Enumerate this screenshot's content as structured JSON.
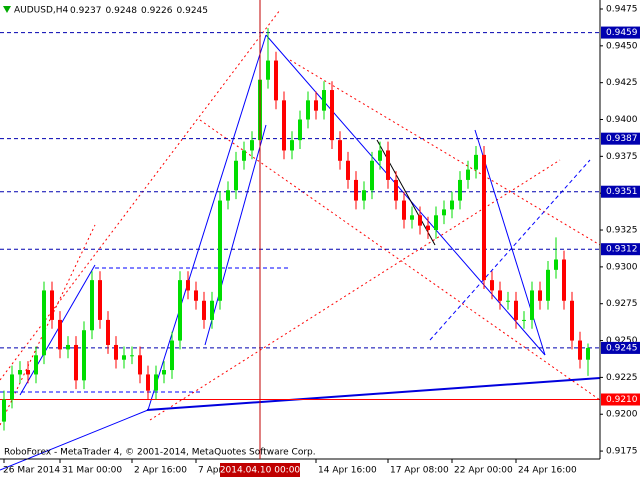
{
  "chart_data": {
    "type": "candlestick",
    "symbol": "AUDUSD,H4",
    "header_values": [
      0.9237,
      0.9248,
      0.9226,
      0.9245
    ],
    "footer": "RoboForex - MetaTrader 4, © 2001-2014, MetaQuotes Software Corp.",
    "up_color": "#00dd00",
    "down_color": "#ff0000",
    "cursor": "2014.04.10 00:00",
    "categories": [
      "26 Mar 2014",
      null,
      null,
      null,
      null,
      null,
      null,
      "31 Mar 00:00",
      null,
      null,
      null,
      null,
      null,
      null,
      null,
      null,
      "2 Apr 16:00",
      null,
      null,
      null,
      null,
      null,
      null,
      null,
      "7 Apr",
      null,
      null,
      null,
      null,
      null,
      null,
      null,
      "2014.04.10 00:00",
      null,
      null,
      null,
      null,
      null,
      null,
      "14 Apr 16:00",
      null,
      null,
      null,
      null,
      null,
      null,
      null,
      null,
      "17 Apr 08:00",
      null,
      null,
      null,
      null,
      null,
      null,
      null,
      "22 Apr 00:00",
      null,
      null,
      null,
      null,
      null,
      null,
      null,
      "24 Apr 16:00",
      null,
      null,
      null,
      null,
      null,
      null,
      null,
      null,
      null
    ],
    "open": [
      0.9195,
      0.921,
      0.9227,
      0.923,
      0.9227,
      0.924,
      0.9284,
      0.9264,
      0.9244,
      0.9247,
      0.9223,
      0.9257,
      0.9291,
      0.9264,
      0.9247,
      0.9237,
      0.924,
      0.924,
      0.9227,
      0.9216,
      0.9227,
      0.923,
      0.925,
      0.9291,
      0.9284,
      0.9277,
      0.9264,
      0.9277,
      0.9345,
      0.9352,
      0.9372,
      0.9379,
      0.9386,
      0.9427,
      0.944,
      0.9413,
      0.9379,
      0.9386,
      0.94,
      0.9413,
      0.9406,
      0.942,
      0.9386,
      0.9372,
      0.9359,
      0.9345,
      0.9352,
      0.9372,
      0.9379,
      0.9359,
      0.9345,
      0.9332,
      0.9335,
      0.9328,
      0.9325,
      0.9335,
      0.9339,
      0.9345,
      0.9359,
      0.9366,
      0.9376,
      0.9291,
      0.9284,
      0.9277,
      0.9277,
      0.9264,
      0.9264,
      0.9284,
      0.9277,
      0.9298,
      0.9305,
      0.9277,
      0.925,
      0.9237
    ],
    "high": [
      0.9216,
      0.9233,
      0.9236,
      0.9236,
      0.9246,
      0.929,
      0.929,
      0.927,
      0.9253,
      0.9253,
      0.9263,
      0.9297,
      0.9297,
      0.927,
      0.9253,
      0.9246,
      0.9246,
      0.9246,
      0.9233,
      0.9233,
      0.9236,
      0.9256,
      0.9297,
      0.9297,
      0.929,
      0.9283,
      0.9283,
      0.9351,
      0.9358,
      0.9378,
      0.9385,
      0.9392,
      0.9433,
      0.9462,
      0.9446,
      0.9419,
      0.9392,
      0.9406,
      0.9419,
      0.9419,
      0.9426,
      0.9426,
      0.9392,
      0.9378,
      0.9365,
      0.9358,
      0.9378,
      0.9385,
      0.9385,
      0.9365,
      0.9351,
      0.9341,
      0.9341,
      0.9334,
      0.9341,
      0.9345,
      0.9351,
      0.9365,
      0.9372,
      0.9382,
      0.9382,
      0.9297,
      0.929,
      0.9283,
      0.9283,
      0.927,
      0.929,
      0.929,
      0.9304,
      0.932,
      0.9311,
      0.9283,
      0.9256,
      0.9248
    ],
    "low": [
      0.9189,
      0.9204,
      0.9221,
      0.9221,
      0.9221,
      0.9234,
      0.9258,
      0.9238,
      0.9238,
      0.9217,
      0.9217,
      0.9251,
      0.9258,
      0.9241,
      0.9231,
      0.9231,
      0.9234,
      0.9221,
      0.921,
      0.921,
      0.9221,
      0.9224,
      0.9244,
      0.9278,
      0.9271,
      0.9258,
      0.9258,
      0.9271,
      0.9339,
      0.9346,
      0.9366,
      0.9373,
      0.938,
      0.9421,
      0.9407,
      0.9373,
      0.9373,
      0.938,
      0.9394,
      0.94,
      0.94,
      0.938,
      0.9366,
      0.9353,
      0.9339,
      0.9339,
      0.9346,
      0.9366,
      0.9353,
      0.9339,
      0.9326,
      0.9326,
      0.9322,
      0.9319,
      0.9319,
      0.9329,
      0.9333,
      0.9339,
      0.9353,
      0.936,
      0.9285,
      0.9278,
      0.9271,
      0.9271,
      0.9258,
      0.9258,
      0.9258,
      0.9271,
      0.9271,
      0.9292,
      0.9271,
      0.9244,
      0.9231,
      0.9226
    ],
    "close": [
      0.921,
      0.9227,
      0.923,
      0.9227,
      0.924,
      0.9284,
      0.9264,
      0.9244,
      0.9247,
      0.9223,
      0.9257,
      0.9291,
      0.9264,
      0.9247,
      0.9237,
      0.924,
      0.924,
      0.9227,
      0.9216,
      0.9227,
      0.923,
      0.925,
      0.9291,
      0.9284,
      0.9277,
      0.9264,
      0.9277,
      0.9345,
      0.9352,
      0.9372,
      0.9379,
      0.9386,
      0.9427,
      0.944,
      0.9413,
      0.9379,
      0.9386,
      0.94,
      0.9413,
      0.9406,
      0.942,
      0.9386,
      0.9372,
      0.9359,
      0.9345,
      0.9352,
      0.9372,
      0.9379,
      0.9359,
      0.9345,
      0.9332,
      0.9335,
      0.9328,
      0.9325,
      0.9335,
      0.9339,
      0.9345,
      0.9359,
      0.9366,
      0.9376,
      0.9291,
      0.9284,
      0.9277,
      0.9277,
      0.9264,
      0.9264,
      0.9284,
      0.9277,
      0.9298,
      0.9305,
      0.9277,
      0.925,
      0.9237,
      0.9245
    ],
    "ylim": [
      0.91703,
      0.94811
    ],
    "yticks": [
      0.9475,
      {
        "value": 0.945,
        "label": "0.9450"
      },
      0.9425,
      {
        "value": 0.94,
        "label": "0.9400"
      },
      0.9375,
      {
        "value": 0.935,
        "label": "0.9350"
      },
      0.9325,
      {
        "value": 0.93,
        "label": "0.9300"
      },
      0.9275,
      {
        "value": 0.925,
        "label": "0.9250"
      },
      0.9225,
      {
        "value": 0.92,
        "label": "0.9200"
      },
      0.9175
    ],
    "levels": [
      {
        "value": 0.9459,
        "color": "#0000b0"
      },
      {
        "value": 0.9387,
        "color": "#0000b0"
      },
      {
        "value": 0.9351,
        "color": "#0000b0"
      },
      {
        "value": 0.9312,
        "color": "#0000b0"
      },
      {
        "value": 0.9245,
        "color": "#0000b0"
      },
      {
        "value": 0.921,
        "label": "0.9210",
        "color": "#ff0000"
      }
    ]
  }
}
